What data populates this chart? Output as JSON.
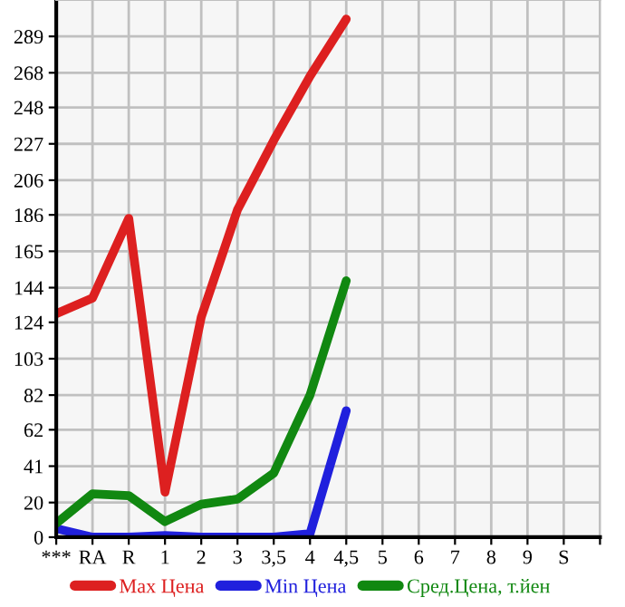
{
  "chart_data": {
    "type": "line",
    "categories": [
      "***",
      "RA",
      "R",
      "1",
      "2",
      "3",
      "3,5",
      "4",
      "4,5",
      "5",
      "6",
      "7",
      "8",
      "9",
      "S",
      null
    ],
    "series": [
      {
        "name": "Max Цена",
        "color": "#dd2020",
        "values": [
          129,
          138,
          184,
          26,
          127,
          189,
          229,
          266,
          299,
          null,
          null,
          null,
          null,
          null,
          null,
          null
        ]
      },
      {
        "name": "Min Цена",
        "color": "#2020dd",
        "values": [
          5,
          0,
          0,
          1,
          0,
          0,
          0,
          2,
          73,
          null,
          null,
          null,
          null,
          null,
          null,
          null
        ]
      },
      {
        "name": "Сред.Цена, т.йен",
        "color": "#118811",
        "values": [
          8,
          25,
          24,
          9,
          19,
          22,
          37,
          82,
          148,
          null,
          null,
          null,
          null,
          null,
          null,
          null
        ]
      }
    ],
    "ylim": [
      0,
      310
    ],
    "yticks": [
      0,
      20,
      41,
      62,
      82,
      103,
      124,
      144,
      165,
      186,
      206,
      227,
      248,
      268,
      289
    ],
    "grid": true,
    "legend": "bottom",
    "marker": "none",
    "line_style": "solid"
  }
}
